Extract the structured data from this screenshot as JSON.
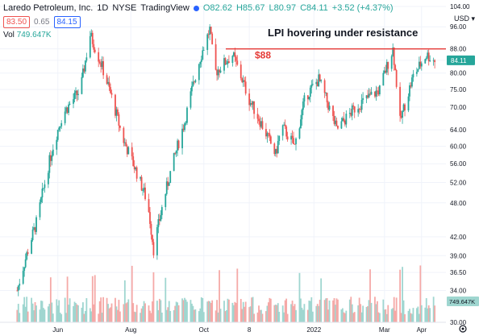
{
  "header": {
    "symbol": "Laredo Petroleum, Inc.",
    "interval": "1D",
    "exchange": "NYSE",
    "source": "TradingView",
    "open": "O82.62",
    "high": "H85.67",
    "low": "L80.97",
    "close": "C84.11",
    "change": "+3.52 (+4.37%)",
    "sell_price": "83.50",
    "spread": "0.65",
    "buy_price": "84.15",
    "vol_label": "Vol",
    "vol_value": "749.647K",
    "currency": "USD",
    "dot_color": "#2962ff"
  },
  "annotation": {
    "title": "LPI hovering under resistance",
    "resistance_label": "$88",
    "resistance_color": "#e53935"
  },
  "colors": {
    "up": "#26a69a",
    "down": "#ef5350",
    "up_vol": "#9fd6d0",
    "down_vol": "#f5a9a7"
  },
  "chart_data": {
    "type": "candlestick",
    "title": "LPI hovering under resistance",
    "x_ticks": [
      "Jun",
      "Aug",
      "Oct",
      "8",
      "2022",
      "Mar",
      "Apr"
    ],
    "y_ticks": [
      "104.00",
      "96.00",
      "88.00",
      "84.11",
      "80.00",
      "75.00",
      "70.00",
      "64.00",
      "60.00",
      "56.00",
      "52.00",
      "48.00",
      "42.00",
      "39.00",
      "36.50",
      "34.00",
      "30.00"
    ],
    "last_price": "84.11",
    "volume_last": "749.647K",
    "resistance": 88,
    "ylim": [
      30,
      104
    ],
    "scale": "log",
    "key_closes": [
      [
        "2021-04-28",
        34
      ],
      [
        "2021-05-15",
        45
      ],
      [
        "2021-05-28",
        60
      ],
      [
        "2021-06-05",
        68
      ],
      [
        "2021-06-20",
        75
      ],
      [
        "2021-06-28",
        93
      ],
      [
        "2021-07-08",
        82
      ],
      [
        "2021-07-25",
        62
      ],
      [
        "2021-08-15",
        48
      ],
      [
        "2021-08-20",
        40
      ],
      [
        "2021-09-01",
        52
      ],
      [
        "2021-09-15",
        66
      ],
      [
        "2021-09-28",
        85
      ],
      [
        "2021-10-06",
        95
      ],
      [
        "2021-10-10",
        80
      ],
      [
        "2021-10-25",
        86
      ],
      [
        "2021-11-08",
        72
      ],
      [
        "2021-11-30",
        58
      ],
      [
        "2021-12-05",
        65
      ],
      [
        "2021-12-16",
        60
      ],
      [
        "2021-12-25",
        73
      ],
      [
        "2022-01-05",
        78
      ],
      [
        "2022-01-20",
        64
      ],
      [
        "2022-02-05",
        70
      ],
      [
        "2022-02-25",
        75
      ],
      [
        "2022-03-08",
        88
      ],
      [
        "2022-03-14",
        66
      ],
      [
        "2022-03-25",
        79
      ],
      [
        "2022-04-05",
        86
      ],
      [
        "2022-04-12",
        84.11
      ]
    ]
  }
}
